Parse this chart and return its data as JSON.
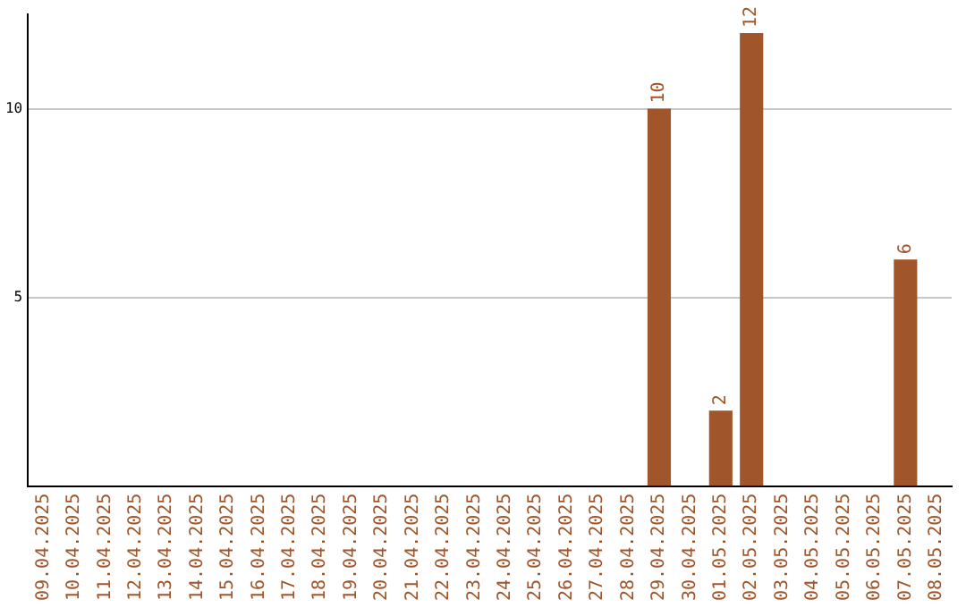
{
  "chart_data": {
    "type": "bar",
    "categories": [
      "09.04.2025",
      "10.04.2025",
      "11.04.2025",
      "12.04.2025",
      "13.04.2025",
      "14.04.2025",
      "15.04.2025",
      "16.04.2025",
      "17.04.2025",
      "18.04.2025",
      "19.04.2025",
      "20.04.2025",
      "21.04.2025",
      "22.04.2025",
      "23.04.2025",
      "24.04.2025",
      "25.04.2025",
      "26.04.2025",
      "27.04.2025",
      "28.04.2025",
      "29.04.2025",
      "30.04.2025",
      "01.05.2025",
      "02.05.2025",
      "03.05.2025",
      "04.05.2025",
      "05.05.2025",
      "06.05.2025",
      "07.05.2025",
      "08.05.2025"
    ],
    "values": [
      0,
      0,
      0,
      0,
      0,
      0,
      0,
      0,
      0,
      0,
      0,
      0,
      0,
      0,
      0,
      0,
      0,
      0,
      0,
      0,
      10,
      0,
      2,
      12,
      0,
      0,
      0,
      0,
      6,
      0
    ],
    "value_labels": [
      null,
      null,
      null,
      null,
      null,
      null,
      null,
      null,
      null,
      null,
      null,
      null,
      null,
      null,
      null,
      null,
      null,
      null,
      null,
      null,
      "10",
      null,
      "2",
      "12",
      null,
      null,
      null,
      null,
      "6",
      null
    ],
    "color": "#a0562a",
    "ylim": [
      0,
      12.5
    ],
    "yticks": [
      5,
      10
    ],
    "grid": "y",
    "legend": false
  }
}
